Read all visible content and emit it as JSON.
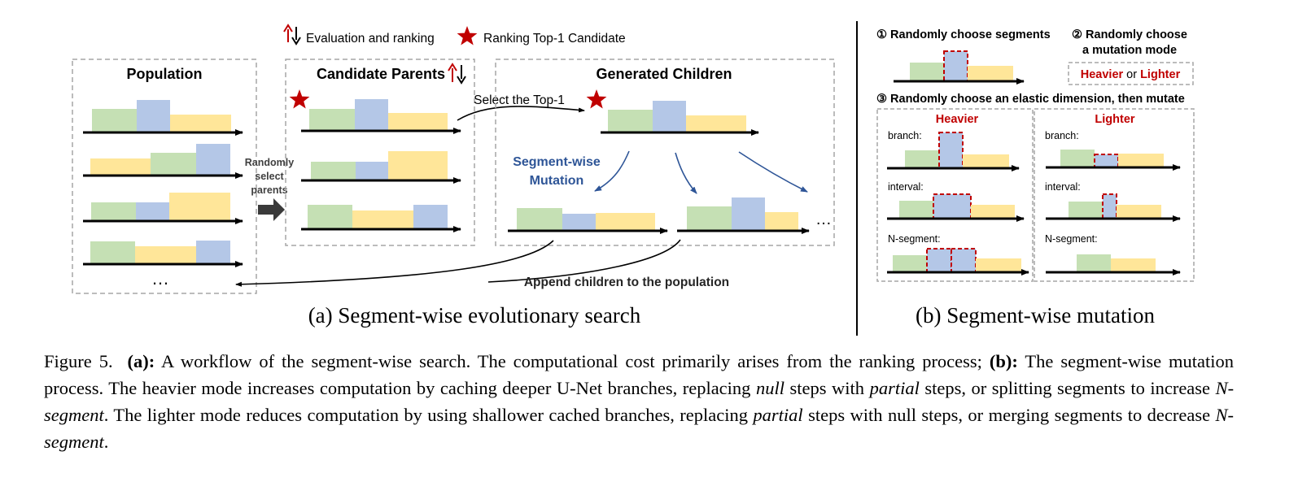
{
  "legend": {
    "eval_text": "Evaluation and ranking",
    "star_text": "Ranking Top-1 Candidate"
  },
  "panel_a": {
    "population_title": "Population",
    "candidate_title": "Candidate Parents",
    "children_title": "Generated Children",
    "random_select": [
      "Randomly",
      "select",
      "parents"
    ],
    "select_top1": "Select the Top-1",
    "mutation": [
      "Segment-wise",
      "Mutation"
    ],
    "append": "Append children to the population",
    "ellipsis": "…",
    "subcaption": "(a) Segment-wise evolutionary search"
  },
  "panel_b": {
    "step1": "① Randomly choose segments",
    "step2": [
      "② Randomly choose",
      "a mutation mode"
    ],
    "mode_heavier": "Heavier",
    "mode_or": "or",
    "mode_lighter": "Lighter",
    "step3": "③ Randomly choose an elastic dimension, then mutate",
    "heavier_title": "Heavier",
    "lighter_title": "Lighter",
    "branch": "branch:",
    "interval": "interval:",
    "nsegment": "N-segment:",
    "subcaption": "(b) Segment-wise mutation"
  },
  "caption": {
    "prefix": "Figure 5.",
    "a_label": "(a):",
    "a_text": "A workflow of the segment-wise search. The computational cost primarily arises from the ranking process;",
    "b_label": "(b):",
    "b_text1": "The segment-wise mutation process. The heavier mode increases computation by caching deeper U-Net branches, replacing",
    "null_word": "null",
    "b_text2": "steps with",
    "partial_word": "partial",
    "b_text3": "steps, or splitting segments to increase",
    "nseg_word": "N-segment",
    "b_text4": ". The lighter mode reduces computation by using shallower cached branches, replacing",
    "partial_word2": "partial",
    "b_text5": "steps with null steps, or merging segments to decrease",
    "nseg_word2": "N-segment",
    "b_text6": "."
  },
  "colors": {
    "green": "#C5E0B4",
    "blue": "#B4C7E7",
    "yellow": "#FFE699",
    "red": "#C00000",
    "dark_red": "#A50F15",
    "navy": "#2E5597",
    "gray_border": "#A6A6A6"
  }
}
